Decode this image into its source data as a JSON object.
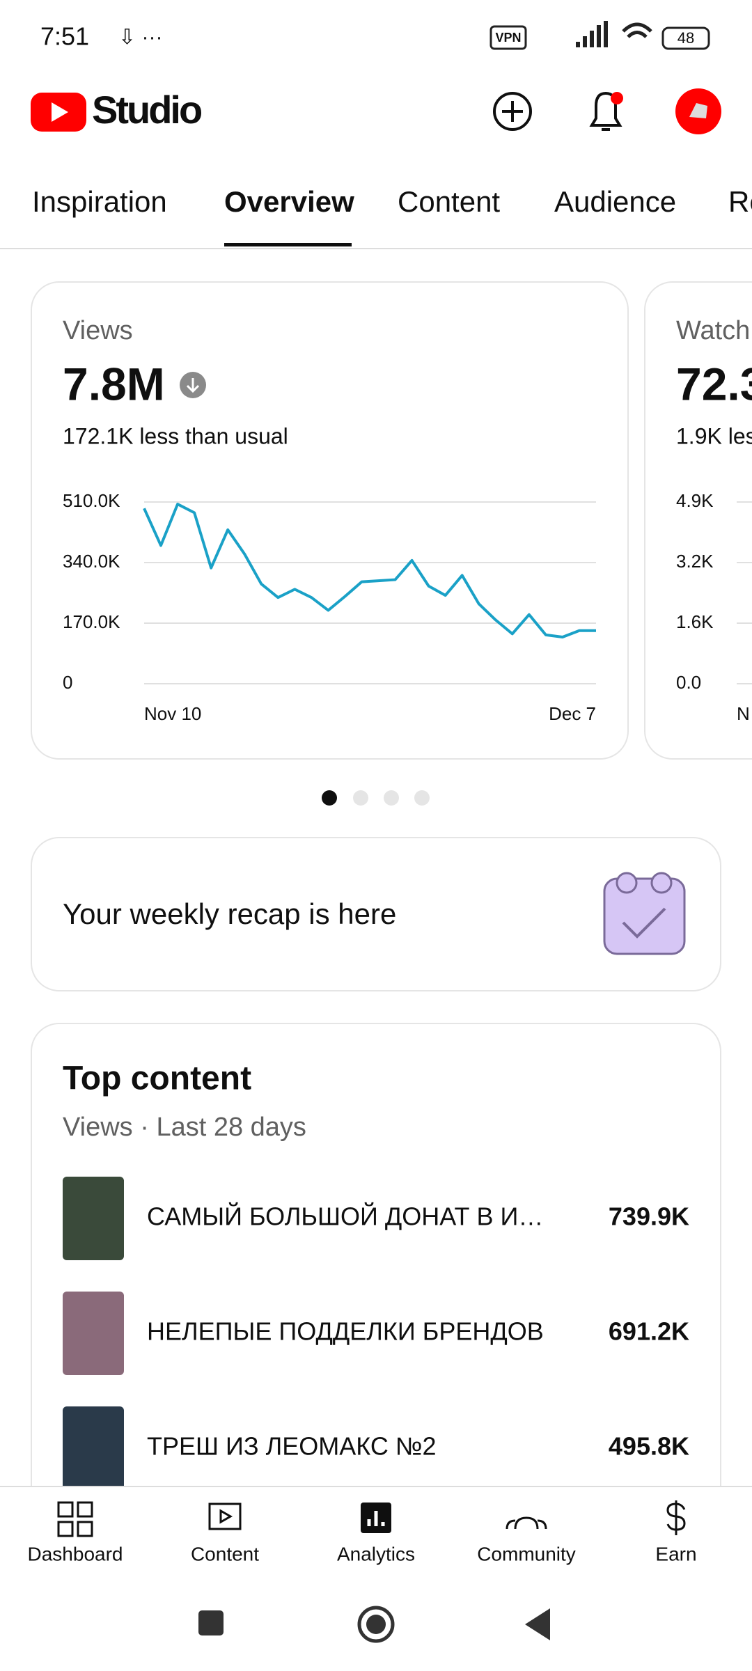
{
  "status_bar": {
    "time": "7:51",
    "vpn": "VPN",
    "battery": "48"
  },
  "header": {
    "title": "Studio"
  },
  "tabs": [
    "Inspiration",
    "Overview",
    "Content",
    "Audience",
    "Re"
  ],
  "cards": [
    {
      "label": "Views",
      "value": "7.8M",
      "note": "172.1K less than usual",
      "chart_data": {
        "type": "line",
        "categories": [
          "Nov 10",
          null,
          null,
          null,
          null,
          null,
          null,
          null,
          null,
          null,
          null,
          null,
          null,
          null,
          null,
          null,
          null,
          null,
          null,
          null,
          null,
          null,
          null,
          null,
          null,
          null,
          null,
          "Dec 7"
        ],
        "series": [
          {
            "name": "Views",
            "color": "#1aa1c7",
            "values": [
              492000,
              388000,
              504000,
              480000,
              325000,
              432000,
              364000,
              280000,
              242000,
              265000,
              242000,
              206000,
              245000,
              286000,
              289000,
              292000,
              346000,
              274000,
              248000,
              304000,
              224000,
              179000,
              140000,
              194000,
              137000,
              131000,
              149000,
              149000
            ]
          }
        ],
        "ylim": [
          0,
          510000
        ],
        "yticks": [
          0,
          {
            "value": 170000,
            "label": "170.0K"
          },
          {
            "value": 340000,
            "label": "340.0K"
          },
          {
            "value": 510000,
            "label": "510.0K"
          }
        ],
        "grid": true
      }
    },
    {
      "label": "Watch",
      "value": "72.3",
      "note": "1.9K les",
      "ticks": [
        "4.9K",
        "3.2K",
        "1.6K",
        "0.0"
      ],
      "x_label": "N"
    }
  ],
  "recap": {
    "text": "Your weekly recap is here"
  },
  "top_content": {
    "title": "Top content",
    "subtitle": "Views · Last 28 days",
    "rows": [
      {
        "title": "САМЫЙ БОЛЬШОЙ ДОНАТ В И…",
        "views": "739.9K"
      },
      {
        "title": "НЕЛЕПЫЕ ПОДДЕЛКИ БРЕНДОВ",
        "views": "691.2K"
      },
      {
        "title": "ТРЕШ ИЗ ЛЕОМАКС №2",
        "views": "495.8K"
      }
    ]
  },
  "nav": [
    "Dashboard",
    "Content",
    "Analytics",
    "Community",
    "Earn"
  ]
}
